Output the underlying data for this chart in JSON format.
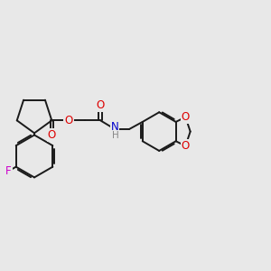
{
  "bg_color": "#e8e8e8",
  "bond_color": "#1a1a1a",
  "bond_width": 1.4,
  "atom_colors": {
    "O": "#dd0000",
    "N": "#0000cc",
    "F": "#cc00cc",
    "C": "#1a1a1a",
    "H": "#888888"
  },
  "font_size_atom": 8.5,
  "font_size_H": 7.5
}
